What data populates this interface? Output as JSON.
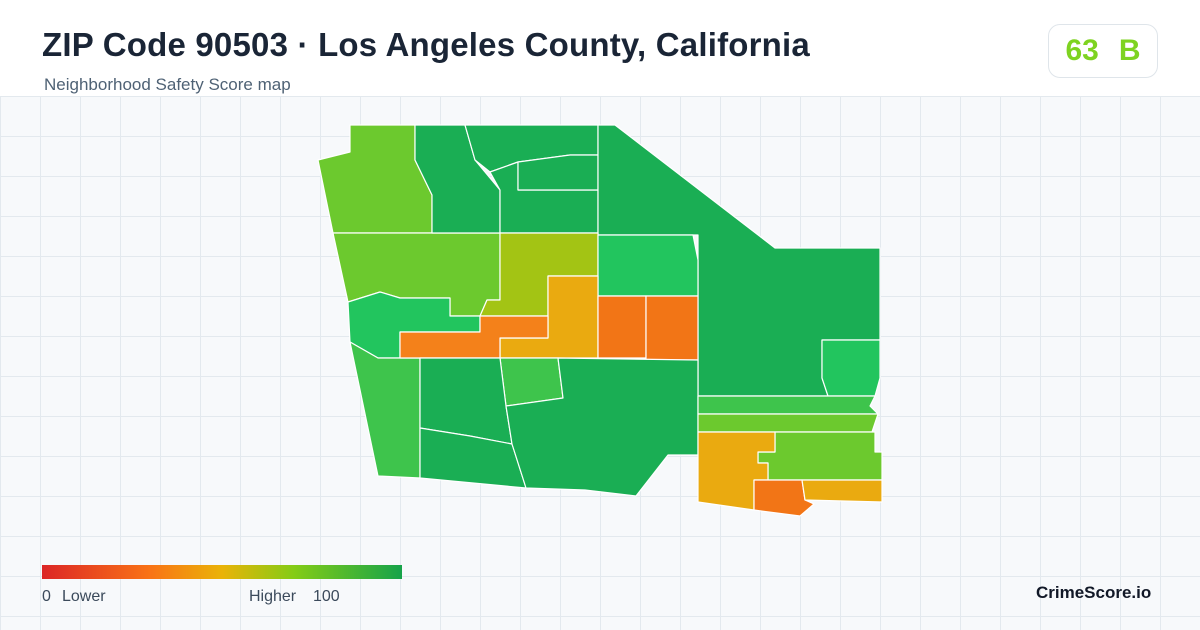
{
  "header": {
    "title": "ZIP Code 90503 · Los Angeles County, California",
    "subtitle": "Neighborhood Safety Score map"
  },
  "score": {
    "value": "63",
    "grade": "B",
    "color": "#7ed321"
  },
  "legend": {
    "min_value": "0",
    "min_label": "Lower",
    "max_label": "Higher",
    "max_value": "100",
    "colors": [
      "#dc2626",
      "#f97316",
      "#eab308",
      "#84cc16",
      "#16a34a"
    ]
  },
  "brand": "CrimeScore.io",
  "map": {
    "region_colors": {
      "dark_green": "#1aae54",
      "green": "#22c55e",
      "medium_green": "#3ec44c",
      "light_green": "#6cc92e",
      "yellow_green": "#a3c414",
      "amber": "#eaaa10",
      "orange": "#f4811a",
      "dark_orange": "#f27516"
    }
  }
}
